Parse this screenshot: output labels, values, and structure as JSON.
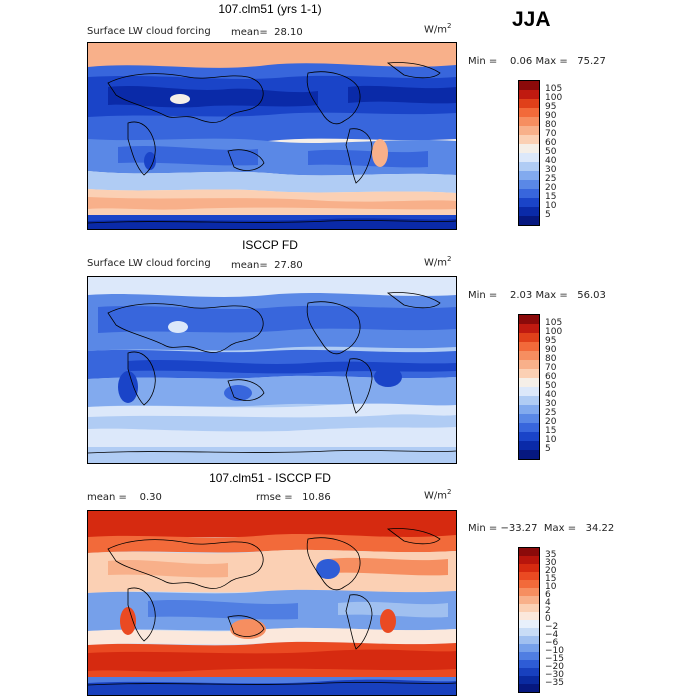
{
  "season": "JJA",
  "panels": [
    {
      "id": "model",
      "title": "107.clm51 (yrs 1-1)",
      "variable_label": "Surface LW cloud forcing",
      "mean_label": "mean=  28.10",
      "units_base": "W/m",
      "units_exp": "2",
      "minmax_label": "Min =    0.06 Max =   75.27",
      "colorbar_levels": [
        "105",
        "100",
        "95",
        "90",
        "80",
        "70",
        "60",
        "50",
        "40",
        "30",
        "25",
        "20",
        "15",
        "10",
        "5"
      ],
      "colorbar_colors": [
        "#8b0a0a",
        "#c01a10",
        "#e0401a",
        "#f26a3a",
        "#f68e60",
        "#f8b08a",
        "#fbd0b4",
        "#f5efe8",
        "#dce8fa",
        "#b0ccf4",
        "#82aaee",
        "#5a88e6",
        "#3866dc",
        "#1a44c8",
        "#0a2aa8",
        "#061880"
      ]
    },
    {
      "id": "obs",
      "title": "ISCCP FD",
      "variable_label": "Surface LW cloud forcing",
      "mean_label": "mean=  27.80",
      "units_base": "W/m",
      "units_exp": "2",
      "minmax_label": "Min =    2.03 Max =   56.03",
      "colorbar_levels": [
        "105",
        "100",
        "95",
        "90",
        "80",
        "70",
        "60",
        "50",
        "40",
        "30",
        "25",
        "20",
        "15",
        "10",
        "5"
      ],
      "colorbar_colors": [
        "#8b0a0a",
        "#c01a10",
        "#e0401a",
        "#f26a3a",
        "#f68e60",
        "#f8b08a",
        "#fbd0b4",
        "#f5efe8",
        "#dce8fa",
        "#b0ccf4",
        "#82aaee",
        "#5a88e6",
        "#3866dc",
        "#1a44c8",
        "#0a2aa8",
        "#061880"
      ]
    },
    {
      "id": "diff",
      "title": "107.clm51 - ISCCP FD",
      "mean_label": "mean =    0.30",
      "rmse_label": "rmse =   10.86",
      "units_base": "W/m",
      "units_exp": "2",
      "minmax_label": "Min = −33.27  Max =   34.22",
      "colorbar_levels": [
        "35",
        "30",
        "20",
        "15",
        "10",
        "6",
        "4",
        "2",
        "0",
        "−2",
        "−4",
        "−6",
        "−10",
        "−15",
        "−20",
        "−30",
        "−35"
      ],
      "colorbar_colors": [
        "#8b0a0a",
        "#b8150c",
        "#d62a10",
        "#ea4a22",
        "#f26a3a",
        "#f68e60",
        "#f8b08a",
        "#fbd0b4",
        "#fbe8dc",
        "#e8f0fb",
        "#c8dcf6",
        "#a0c0f0",
        "#76a0ea",
        "#507ee2",
        "#2e5cd6",
        "#1840be",
        "#0a2aa0",
        "#061880"
      ]
    }
  ]
}
